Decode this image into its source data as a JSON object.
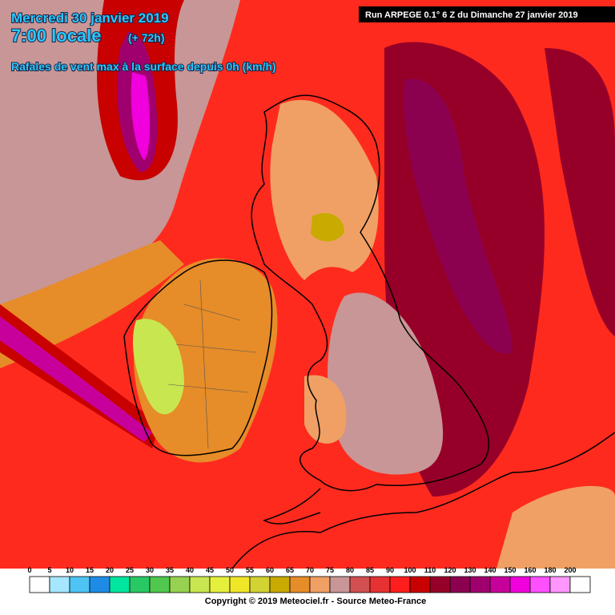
{
  "header": {
    "date": "Mercredi 30 janvier 2019",
    "time": "7:00 locale",
    "lead": "(+ 72h)",
    "parameter": "Rafales de vent max à la surface depuis 0h (km/h)",
    "run": "Run ARPEGE 0.1° 6 Z du Dimanche 27 janvier 2019"
  },
  "legend": {
    "values": [
      0,
      5,
      10,
      15,
      20,
      25,
      30,
      35,
      40,
      45,
      50,
      55,
      60,
      65,
      70,
      75,
      80,
      85,
      90,
      100,
      110,
      120,
      130,
      140,
      150,
      160,
      180,
      200
    ],
    "colors": [
      "#ffffff",
      "#a6e6ff",
      "#4ec4f4",
      "#1e8ce6",
      "#00e6a0",
      "#28c864",
      "#50c850",
      "#96d250",
      "#c8e650",
      "#e6f03c",
      "#f0e628",
      "#d2d232",
      "#c8aa00",
      "#e68c28",
      "#f0a064",
      "#c89696",
      "#d25050",
      "#e63232",
      "#ff1e1e",
      "#c80000",
      "#960028",
      "#8c0050",
      "#a0006e",
      "#c8009b",
      "#f000dc",
      "#ff50ff",
      "#ff96ff",
      "#ffffff"
    ]
  },
  "footer": {
    "copyright": "Copyright © 2019 Meteociel.fr - Source Meteo-France"
  }
}
